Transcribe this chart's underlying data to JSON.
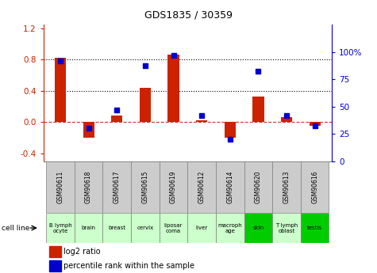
{
  "title": "GDS1835 / 30359",
  "samples": [
    "GSM90611",
    "GSM90618",
    "GSM90617",
    "GSM90615",
    "GSM90619",
    "GSM90612",
    "GSM90614",
    "GSM90620",
    "GSM90613",
    "GSM90616"
  ],
  "cell_lines_display": [
    "B lymph\nocyte",
    "brain",
    "breast",
    "cervix",
    "liposar\ncoma",
    "liver",
    "macroph\nage",
    "skin",
    "T lymph\noblast",
    "testis"
  ],
  "cell_line_colors": [
    "#ccffcc",
    "#ccffcc",
    "#ccffcc",
    "#ccffcc",
    "#ccffcc",
    "#ccffcc",
    "#ccffcc",
    "#00cc00",
    "#ccffcc",
    "#00cc00"
  ],
  "log2_ratio": [
    0.82,
    -0.2,
    0.08,
    0.44,
    0.86,
    0.02,
    -0.2,
    0.33,
    0.06,
    -0.05
  ],
  "percentile_rank": [
    92,
    30,
    47,
    87,
    97,
    42,
    20,
    82,
    42,
    32
  ],
  "ylim_left": [
    -0.5,
    1.25
  ],
  "ylim_right": [
    0,
    125
  ],
  "yticks_left": [
    -0.4,
    0.0,
    0.4,
    0.8,
    1.2
  ],
  "yticks_right": [
    0,
    25,
    50,
    75,
    100
  ],
  "ytick_labels_right": [
    "0",
    "25",
    "50",
    "75",
    "100%"
  ],
  "bar_color": "#cc2200",
  "dot_color": "#0000cc",
  "dotline1": 0.4,
  "dotline2": 0.8,
  "zero_line_color": "#cc3333",
  "sample_box_color": "#cccccc",
  "legend_bar_label": "log2 ratio",
  "legend_dot_label": "percentile rank within the sample",
  "bar_width": 0.4,
  "dot_size": 5
}
